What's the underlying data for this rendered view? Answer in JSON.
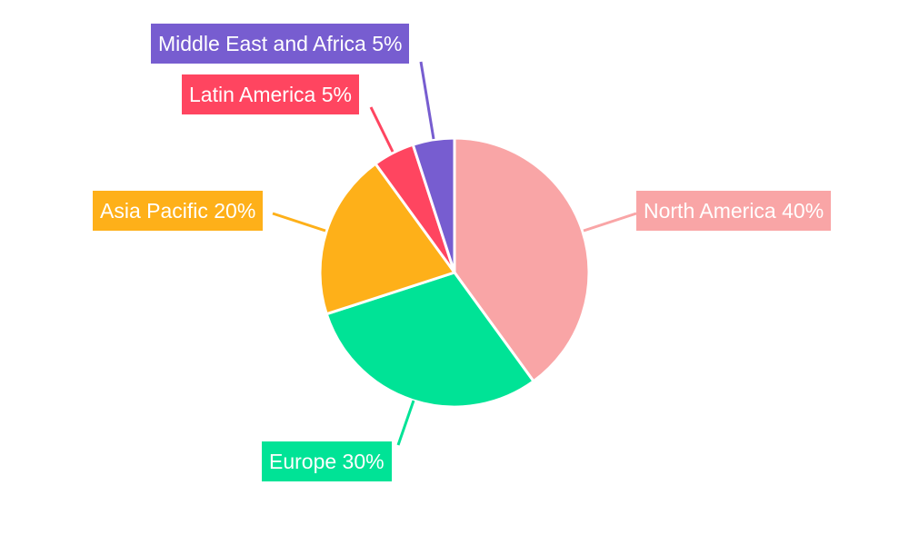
{
  "chart_data": {
    "type": "pie",
    "title": "",
    "start_angle": "top",
    "direction": "clockwise",
    "slices": [
      {
        "label": "North America",
        "value": 40,
        "display": "North America 40%",
        "color": "#F9A5A6"
      },
      {
        "label": "Europe",
        "value": 30,
        "display": "Europe 30%",
        "color": "#00E396"
      },
      {
        "label": "Asia Pacific",
        "value": 20,
        "display": "Asia Pacific 20%",
        "color": "#FEB019"
      },
      {
        "label": "Latin America",
        "value": 5,
        "display": "Latin America 5%",
        "color": "#FF4560"
      },
      {
        "label": "Middle East and Africa",
        "value": 5,
        "display": "Middle East and Africa 5%",
        "color": "#775DD0"
      }
    ]
  }
}
